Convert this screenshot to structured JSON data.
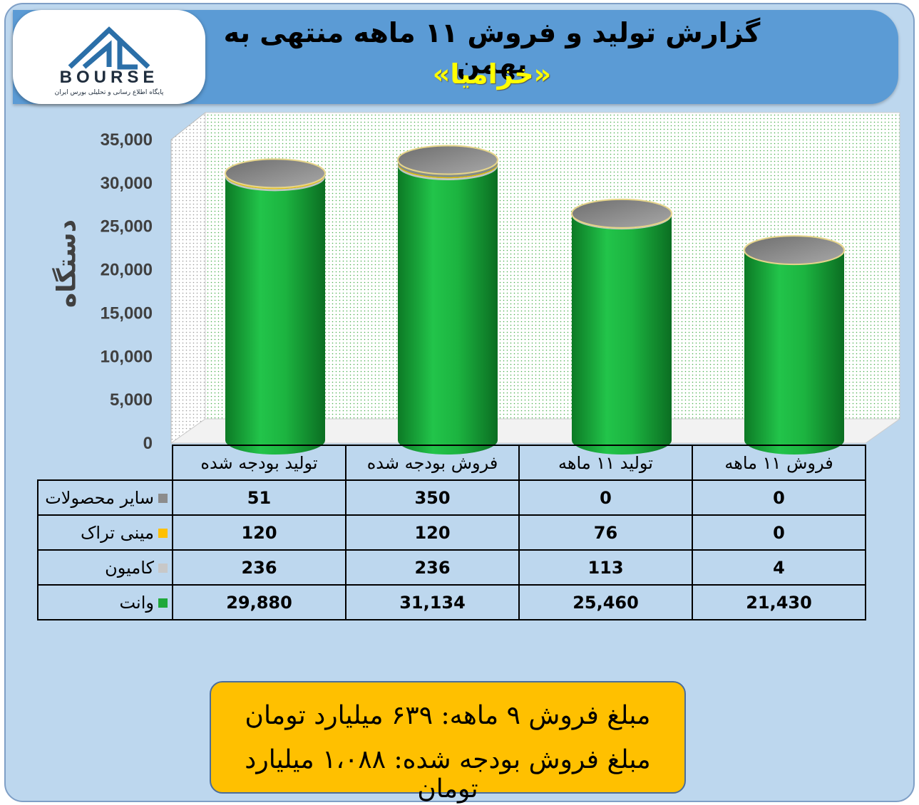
{
  "header": {
    "title": "گزارش تولید و فروش ۱۱ ماهه منتهی به بهمن",
    "subtitle": "«خزامیا»"
  },
  "logo": {
    "text": "BOURSE",
    "tagline": "پایگاه اطلاع رسانی و تحلیلی بورس ایران",
    "colors": {
      "blue": "#2b6fa8",
      "dark": "#1f2d3d"
    }
  },
  "chart_data": {
    "type": "bar",
    "style": "3d-cylinder-stacked",
    "ylabel": "دستگاه",
    "ylim": [
      0,
      35000
    ],
    "yticks": [
      "0",
      "5,000",
      "10,000",
      "15,000",
      "20,000",
      "25,000",
      "30,000",
      "35,000"
    ],
    "ytick_values": [
      0,
      5000,
      10000,
      15000,
      20000,
      25000,
      30000,
      35000
    ],
    "grid": true,
    "categories": [
      "تولید بودجه شده",
      "فروش بودجه شده",
      "تولید ۱۱ ماهه",
      "فروش ۱۱ ماهه"
    ],
    "series": [
      {
        "name": "وانت",
        "color": "#1fa83a",
        "values": [
          29880,
          31134,
          25460,
          21430
        ],
        "labels": [
          "29,880",
          "31,134",
          "25,460",
          "21,430"
        ]
      },
      {
        "name": "کامیون",
        "color": "#c8c8c8",
        "values": [
          236,
          236,
          113,
          4
        ],
        "labels": [
          "236",
          "236",
          "113",
          "4"
        ]
      },
      {
        "name": "مینی تراک",
        "color": "#ffc000",
        "values": [
          120,
          120,
          76,
          0
        ],
        "labels": [
          "120",
          "120",
          "76",
          "0"
        ]
      },
      {
        "name": "سایر محصولات",
        "color": "#8c8c8c",
        "values": [
          51,
          350,
          0,
          0
        ],
        "labels": [
          "51",
          "350",
          "0",
          "0"
        ]
      }
    ]
  },
  "note": {
    "line1": "مبلغ فروش ۹ ماهه: ۶۳۹ میلیارد تومان",
    "line2": "مبلغ فروش بودجه شده: ۱،۰۸۸ میلیارد تومان"
  }
}
